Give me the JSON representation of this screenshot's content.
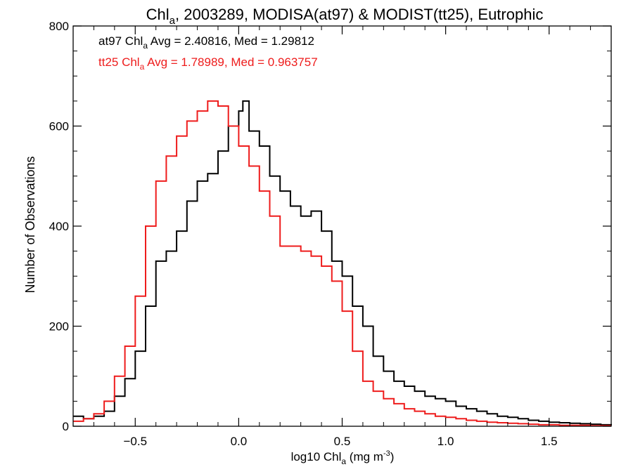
{
  "chart_data": {
    "type": "line",
    "title": {
      "pre": "Chl",
      "sub": "a",
      "post": ", 2003289, MODISA(at97) & MODIST(tt25), Eutrophic"
    },
    "xlabel": {
      "pre": "log10 Chl",
      "sub": "a",
      "mid": " (mg m",
      "sup": "-3",
      "post": ")"
    },
    "ylabel": "Number of Observations",
    "xlim": [
      -0.8,
      1.8
    ],
    "ylim": [
      0,
      800
    ],
    "x_ticks": [
      -0.5,
      0.0,
      0.5,
      1.0,
      1.5
    ],
    "x_tick_labels": [
      "−0.5",
      "0.0",
      "0.5",
      "1.0",
      "1.5"
    ],
    "y_ticks": [
      0,
      200,
      400,
      600,
      800
    ],
    "y_tick_labels": [
      "0",
      "200",
      "400",
      "600",
      "800"
    ],
    "series": [
      {
        "label": {
          "pre": "at97 Chl",
          "sub": "a",
          "post": " Avg = 2.40816, Med = 1.29812"
        },
        "color": "#000000",
        "x": [
          -0.8,
          -0.75,
          -0.7,
          -0.65,
          -0.6,
          -0.55,
          -0.5,
          -0.45,
          -0.4,
          -0.35,
          -0.3,
          -0.25,
          -0.2,
          -0.15,
          -0.1,
          -0.05,
          0.0,
          0.02,
          0.05,
          0.1,
          0.15,
          0.2,
          0.25,
          0.3,
          0.35,
          0.4,
          0.45,
          0.5,
          0.55,
          0.6,
          0.65,
          0.7,
          0.75,
          0.8,
          0.85,
          0.9,
          0.95,
          1.0,
          1.05,
          1.1,
          1.15,
          1.2,
          1.25,
          1.3,
          1.35,
          1.4,
          1.45,
          1.5,
          1.55,
          1.6,
          1.65,
          1.7,
          1.75,
          1.8
        ],
        "y": [
          20,
          15,
          20,
          30,
          60,
          95,
          150,
          240,
          330,
          350,
          390,
          450,
          490,
          505,
          550,
          600,
          630,
          650,
          590,
          560,
          500,
          470,
          440,
          420,
          430,
          390,
          330,
          300,
          240,
          200,
          140,
          110,
          90,
          80,
          70,
          60,
          55,
          50,
          40,
          35,
          30,
          25,
          20,
          18,
          15,
          12,
          10,
          8,
          7,
          6,
          5,
          4,
          3,
          2
        ]
      },
      {
        "label": {
          "pre": "tt25 Chl",
          "sub": "a",
          "post": " Avg = 1.78989, Med = 0.963757"
        },
        "color": "#ee1c1c",
        "x": [
          -0.8,
          -0.75,
          -0.7,
          -0.65,
          -0.6,
          -0.55,
          -0.5,
          -0.45,
          -0.4,
          -0.35,
          -0.3,
          -0.25,
          -0.2,
          -0.15,
          -0.1,
          -0.05,
          0.0,
          0.05,
          0.1,
          0.15,
          0.2,
          0.25,
          0.3,
          0.35,
          0.4,
          0.45,
          0.5,
          0.55,
          0.6,
          0.65,
          0.7,
          0.75,
          0.8,
          0.85,
          0.9,
          0.95,
          1.0,
          1.05,
          1.1,
          1.15,
          1.2,
          1.25,
          1.3,
          1.35,
          1.4,
          1.45,
          1.5,
          1.55,
          1.6,
          1.65,
          1.7,
          1.75,
          1.8
        ],
        "y": [
          10,
          15,
          25,
          50,
          100,
          160,
          260,
          400,
          490,
          540,
          580,
          610,
          630,
          650,
          640,
          600,
          560,
          520,
          470,
          420,
          360,
          360,
          350,
          340,
          320,
          290,
          230,
          150,
          90,
          70,
          55,
          45,
          35,
          30,
          25,
          20,
          18,
          15,
          12,
          10,
          8,
          7,
          6,
          5,
          4,
          3,
          3,
          2,
          2,
          2,
          1,
          1,
          1
        ]
      }
    ],
    "grid": false,
    "legend": "top-left"
  }
}
